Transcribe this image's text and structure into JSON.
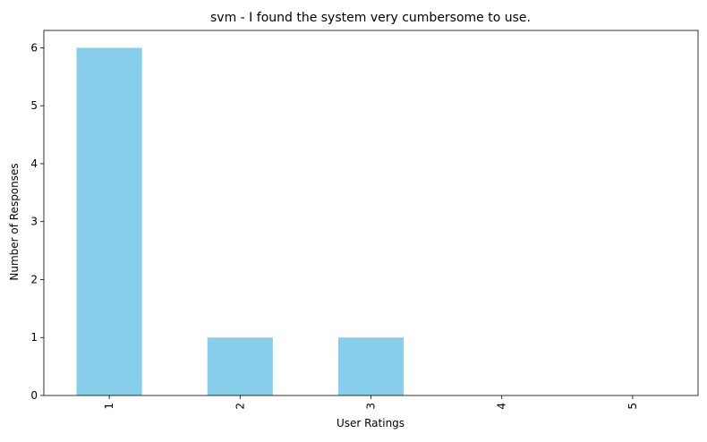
{
  "chart_data": {
    "type": "bar",
    "title": "svm - I found the system very cumbersome to use.",
    "xlabel": "User Ratings",
    "ylabel": "Number of Responses",
    "categories": [
      "1",
      "2",
      "3",
      "4",
      "5"
    ],
    "values": [
      6,
      1,
      1,
      0,
      0
    ],
    "ylim": [
      0,
      6.3
    ],
    "yticks": [
      "0",
      "1",
      "2",
      "3",
      "4",
      "5",
      "6"
    ],
    "grid": false,
    "bar_color": "#87CEEB",
    "x_tick_rotation": "vertical"
  }
}
